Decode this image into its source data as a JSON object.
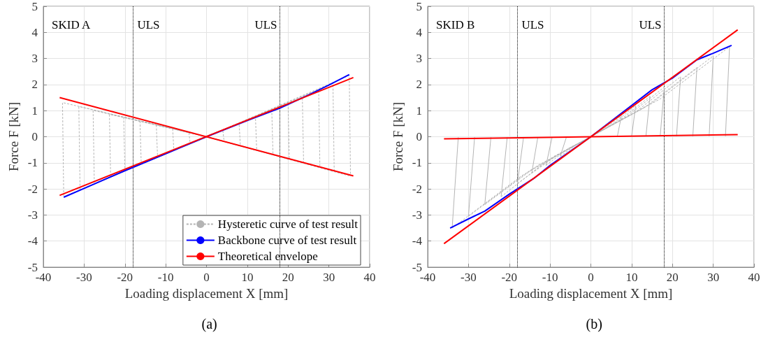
{
  "chart_data": [
    {
      "type": "line",
      "title": "(a)",
      "xlabel": "Loading displacement X [mm]",
      "ylabel": "Force F [kN]",
      "annotations": [
        "SKID A"
      ],
      "xlim": [
        -40,
        40
      ],
      "xticks": [
        -40,
        -30,
        -20,
        -10,
        0,
        10,
        20,
        30,
        40
      ],
      "ylim": [
        -5,
        5
      ],
      "yticks": [
        -5,
        -4,
        -3,
        -2,
        -1,
        0,
        1,
        2,
        3,
        4,
        5
      ],
      "grid": true,
      "legend": "bottom right",
      "marker": "none",
      "ref_lines": [
        {
          "axis": "x",
          "value": -18,
          "label": "ULS",
          "color": "#000000",
          "line_style": "dotted"
        },
        {
          "axis": "x",
          "value": 18,
          "label": "ULS",
          "color": "#000000",
          "line_style": "dotted"
        }
      ],
      "series": [
        {
          "name": "Hysteretic curve of test result",
          "color": "#b4b4b4",
          "line_style": "dashed",
          "x": [
            -35,
            0,
            35,
            35.3
          ],
          "values": [
            1.3,
            0,
            2.35,
            -1.5
          ]
        },
        {
          "color": "#b4b4b4",
          "line_style": "dashed",
          "x": [
            -35.3,
            -35,
            0,
            35
          ],
          "values": [
            1.3,
            -2.3,
            0,
            -1.5
          ]
        },
        {
          "color": "#b4b4b4",
          "line_style": "dashed",
          "x": [
            -31,
            0,
            31,
            31.3
          ],
          "values": [
            1.15,
            0,
            2.05,
            -1.3
          ]
        },
        {
          "color": "#b4b4b4",
          "line_style": "dashed",
          "x": [
            -31.3,
            -31,
            0,
            31
          ],
          "values": [
            1.15,
            -2.05,
            0,
            -1.3
          ]
        },
        {
          "color": "#b4b4b4",
          "line_style": "dashed",
          "x": [
            -27.5,
            0,
            27.5,
            27.8
          ],
          "values": [
            1.0,
            0,
            1.8,
            -1.15
          ]
        },
        {
          "color": "#b4b4b4",
          "line_style": "dashed",
          "x": [
            -27.8,
            -27.5,
            0,
            27.5
          ],
          "values": [
            1.0,
            -1.8,
            0,
            -1.15
          ]
        },
        {
          "color": "#b4b4b4",
          "line_style": "dashed",
          "x": [
            -23.5,
            0,
            23.5,
            23.8
          ],
          "values": [
            0.85,
            0,
            1.5,
            -0.98
          ]
        },
        {
          "color": "#b4b4b4",
          "line_style": "dashed",
          "x": [
            -23.8,
            -23.5,
            0,
            23.5
          ],
          "values": [
            0.85,
            -1.55,
            0,
            -0.98
          ]
        },
        {
          "color": "#b4b4b4",
          "line_style": "dashed",
          "x": [
            -20,
            0,
            20,
            20.3
          ],
          "values": [
            0.75,
            0,
            1.25,
            -0.85
          ]
        },
        {
          "color": "#b4b4b4",
          "line_style": "dashed",
          "x": [
            -20.3,
            -20,
            0,
            20
          ],
          "values": [
            0.75,
            -1.3,
            0,
            -0.85
          ]
        },
        {
          "color": "#b4b4b4",
          "line_style": "dashed",
          "x": [
            -16,
            0,
            16,
            16.3
          ],
          "values": [
            0.6,
            0,
            1.0,
            -0.67
          ]
        },
        {
          "color": "#b4b4b4",
          "line_style": "dashed",
          "x": [
            -16.3,
            -16,
            0,
            16
          ],
          "values": [
            0.6,
            -1.04,
            0,
            -0.67
          ]
        },
        {
          "color": "#b4b4b4",
          "line_style": "dashed",
          "x": [
            -12,
            0,
            12,
            12.3
          ],
          "values": [
            0.45,
            0,
            0.75,
            -0.5
          ]
        },
        {
          "color": "#b4b4b4",
          "line_style": "dashed",
          "x": [
            -12.3,
            -12,
            0,
            12
          ],
          "values": [
            0.45,
            -0.78,
            0,
            -0.5
          ]
        },
        {
          "color": "#b4b4b4",
          "line_style": "dashed",
          "x": [
            -8,
            0,
            8,
            8.3
          ],
          "values": [
            0.3,
            0,
            0.5,
            -0.34
          ]
        },
        {
          "color": "#b4b4b4",
          "line_style": "dashed",
          "x": [
            -8.3,
            -8,
            0,
            8
          ],
          "values": [
            0.3,
            -0.52,
            0,
            -0.34
          ]
        },
        {
          "color": "#b4b4b4",
          "line_style": "dashed",
          "x": [
            -4,
            0,
            4,
            4.3
          ],
          "values": [
            0.15,
            0,
            0.25,
            -0.17
          ]
        },
        {
          "color": "#b4b4b4",
          "line_style": "dashed",
          "x": [
            -4.3,
            -4,
            0,
            4
          ],
          "values": [
            0.15,
            -0.26,
            0,
            -0.17
          ]
        },
        {
          "name": "Backbone curve of test result",
          "color": "#0000ff",
          "line_style": "solid",
          "x": [
            -35,
            -30,
            -20,
            -10,
            0,
            10,
            18,
            25,
            30,
            35
          ],
          "values": [
            -2.32,
            -1.98,
            -1.3,
            -0.65,
            0,
            0.62,
            1.1,
            1.6,
            1.98,
            2.38
          ]
        },
        {
          "name": "Theoretical envelope",
          "color": "#ff0000",
          "line_style": "solid",
          "x": [
            -36,
            36
          ],
          "values": [
            -2.25,
            2.27
          ]
        },
        {
          "color": "#ff0000",
          "line_style": "solid",
          "x": [
            -36,
            36
          ],
          "values": [
            1.5,
            -1.5
          ]
        }
      ]
    },
    {
      "type": "line",
      "title": "(b)",
      "xlabel": "Loading displacement X [mm]",
      "ylabel": "Force F [kN]",
      "annotations": [
        "SKID B"
      ],
      "xlim": [
        -40,
        40
      ],
      "xticks": [
        -40,
        -30,
        -20,
        -10,
        0,
        10,
        20,
        30,
        40
      ],
      "ylim": [
        -5,
        5
      ],
      "yticks": [
        -5,
        -4,
        -3,
        -2,
        -1,
        0,
        1,
        2,
        3,
        4,
        5
      ],
      "grid": true,
      "marker": "none",
      "ref_lines": [
        {
          "axis": "x",
          "value": -18,
          "label": "ULS",
          "color": "#000000",
          "line_style": "dotted"
        },
        {
          "axis": "x",
          "value": 18,
          "label": "ULS",
          "color": "#000000",
          "line_style": "dotted"
        }
      ],
      "series": [
        {
          "color": "#b4b4b4",
          "line_style": "dashed",
          "x": [
            -34,
            -17,
            0,
            17,
            34
          ],
          "values": [
            -3.5,
            -1.5,
            0,
            1.45,
            3.45
          ]
        },
        {
          "color": "#b4b4b4",
          "line_style": "dashed",
          "x": [
            -30,
            -15,
            0,
            15,
            30
          ],
          "values": [
            -3.05,
            -1.3,
            0,
            1.3,
            3.1
          ]
        },
        {
          "color": "#b4b4b4",
          "line_style": "dashed",
          "x": [
            -26,
            -13,
            0,
            13,
            26
          ],
          "values": [
            -2.6,
            -1.1,
            0,
            1.1,
            2.65
          ]
        },
        {
          "color": "#b4b4b4",
          "line_style": "dashed",
          "x": [
            -22,
            -11,
            0,
            11,
            22
          ],
          "values": [
            -2.3,
            -0.95,
            0,
            0.95,
            2.3
          ]
        },
        {
          "color": "#b4b4b4",
          "line_style": "dashed",
          "x": [
            -18,
            -9,
            0,
            9,
            18
          ],
          "values": [
            -1.8,
            -0.75,
            0,
            0.8,
            1.9
          ]
        },
        {
          "color": "#b4b4b4",
          "line_style": "dashed",
          "x": [
            -14.5,
            -7.25,
            0,
            7.25,
            14.5
          ],
          "values": [
            -1.4,
            -0.6,
            0,
            0.65,
            1.55
          ]
        },
        {
          "color": "#b4b4b4",
          "line_style": "dashed",
          "x": [
            -11,
            -5.5,
            0,
            5.5,
            11
          ],
          "values": [
            -1.1,
            -0.45,
            0,
            0.5,
            1.2
          ]
        },
        {
          "color": "#b4b4b4",
          "line_style": "dashed",
          "x": [
            -7.5,
            -3.75,
            0,
            3.75,
            7.5
          ],
          "values": [
            -0.75,
            -0.33,
            0,
            0.35,
            0.8
          ]
        },
        {
          "color": "#b4b4b4",
          "line_style": "solid",
          "x": [
            -34,
            -32.5
          ],
          "values": [
            -3.5,
            -0.02
          ]
        },
        {
          "color": "#b4b4b4",
          "line_style": "solid",
          "x": [
            33,
            34
          ],
          "values": [
            0.02,
            3.45
          ]
        },
        {
          "color": "#b4b4b4",
          "line_style": "solid",
          "x": [
            -30,
            -28.5
          ],
          "values": [
            -3.05,
            -0.02
          ]
        },
        {
          "color": "#b4b4b4",
          "line_style": "solid",
          "x": [
            29,
            30
          ],
          "values": [
            0.02,
            3.1
          ]
        },
        {
          "color": "#b4b4b4",
          "line_style": "solid",
          "x": [
            -26,
            -24.5
          ],
          "values": [
            -2.6,
            -0.02
          ]
        },
        {
          "color": "#b4b4b4",
          "line_style": "solid",
          "x": [
            25,
            26
          ],
          "values": [
            0.02,
            2.65
          ]
        },
        {
          "color": "#b4b4b4",
          "line_style": "solid",
          "x": [
            -22,
            -20.5
          ],
          "values": [
            -2.3,
            -0.02
          ]
        },
        {
          "color": "#b4b4b4",
          "line_style": "solid",
          "x": [
            21,
            22
          ],
          "values": [
            0.02,
            2.3
          ]
        },
        {
          "color": "#b4b4b4",
          "line_style": "solid",
          "x": [
            -16.5,
            -18
          ],
          "values": [
            -0.02,
            -1.8
          ]
        },
        {
          "color": "#b4b4b4",
          "line_style": "solid",
          "x": [
            17,
            18
          ],
          "values": [
            0.02,
            1.9
          ]
        },
        {
          "color": "#b4b4b4",
          "line_style": "solid",
          "x": [
            -14.5,
            -13
          ],
          "values": [
            -1.4,
            -0.02
          ]
        },
        {
          "color": "#b4b4b4",
          "line_style": "solid",
          "x": [
            13.5,
            14.5
          ],
          "values": [
            0.02,
            1.55
          ]
        },
        {
          "color": "#b4b4b4",
          "line_style": "solid",
          "x": [
            -11,
            -9.5
          ],
          "values": [
            -1.1,
            -0.02
          ]
        },
        {
          "color": "#b4b4b4",
          "line_style": "solid",
          "x": [
            10,
            11
          ],
          "values": [
            0.02,
            1.2
          ]
        },
        {
          "color": "#b4b4b4",
          "line_style": "solid",
          "x": [
            -7.5,
            -6
          ],
          "values": [
            -0.75,
            -0.02
          ]
        },
        {
          "color": "#b4b4b4",
          "line_style": "solid",
          "x": [
            6.5,
            7.5
          ],
          "values": [
            0.02,
            0.8
          ]
        },
        {
          "color": "#0000ff",
          "line_style": "solid",
          "x": [
            -34.5,
            -30,
            -26,
            -20,
            -14,
            -10,
            0,
            10,
            15,
            20,
            26,
            30,
            34.5
          ],
          "values": [
            -3.5,
            -3.15,
            -2.85,
            -2.2,
            -1.6,
            -1.1,
            0,
            1.2,
            1.8,
            2.25,
            2.95,
            3.2,
            3.5
          ]
        },
        {
          "color": "#ff0000",
          "line_style": "solid",
          "x": [
            -36,
            36
          ],
          "values": [
            -4.1,
            4.1
          ]
        },
        {
          "color": "#ff0000",
          "line_style": "solid",
          "x": [
            -36,
            36
          ],
          "values": [
            -0.08,
            0.08
          ]
        }
      ]
    }
  ]
}
